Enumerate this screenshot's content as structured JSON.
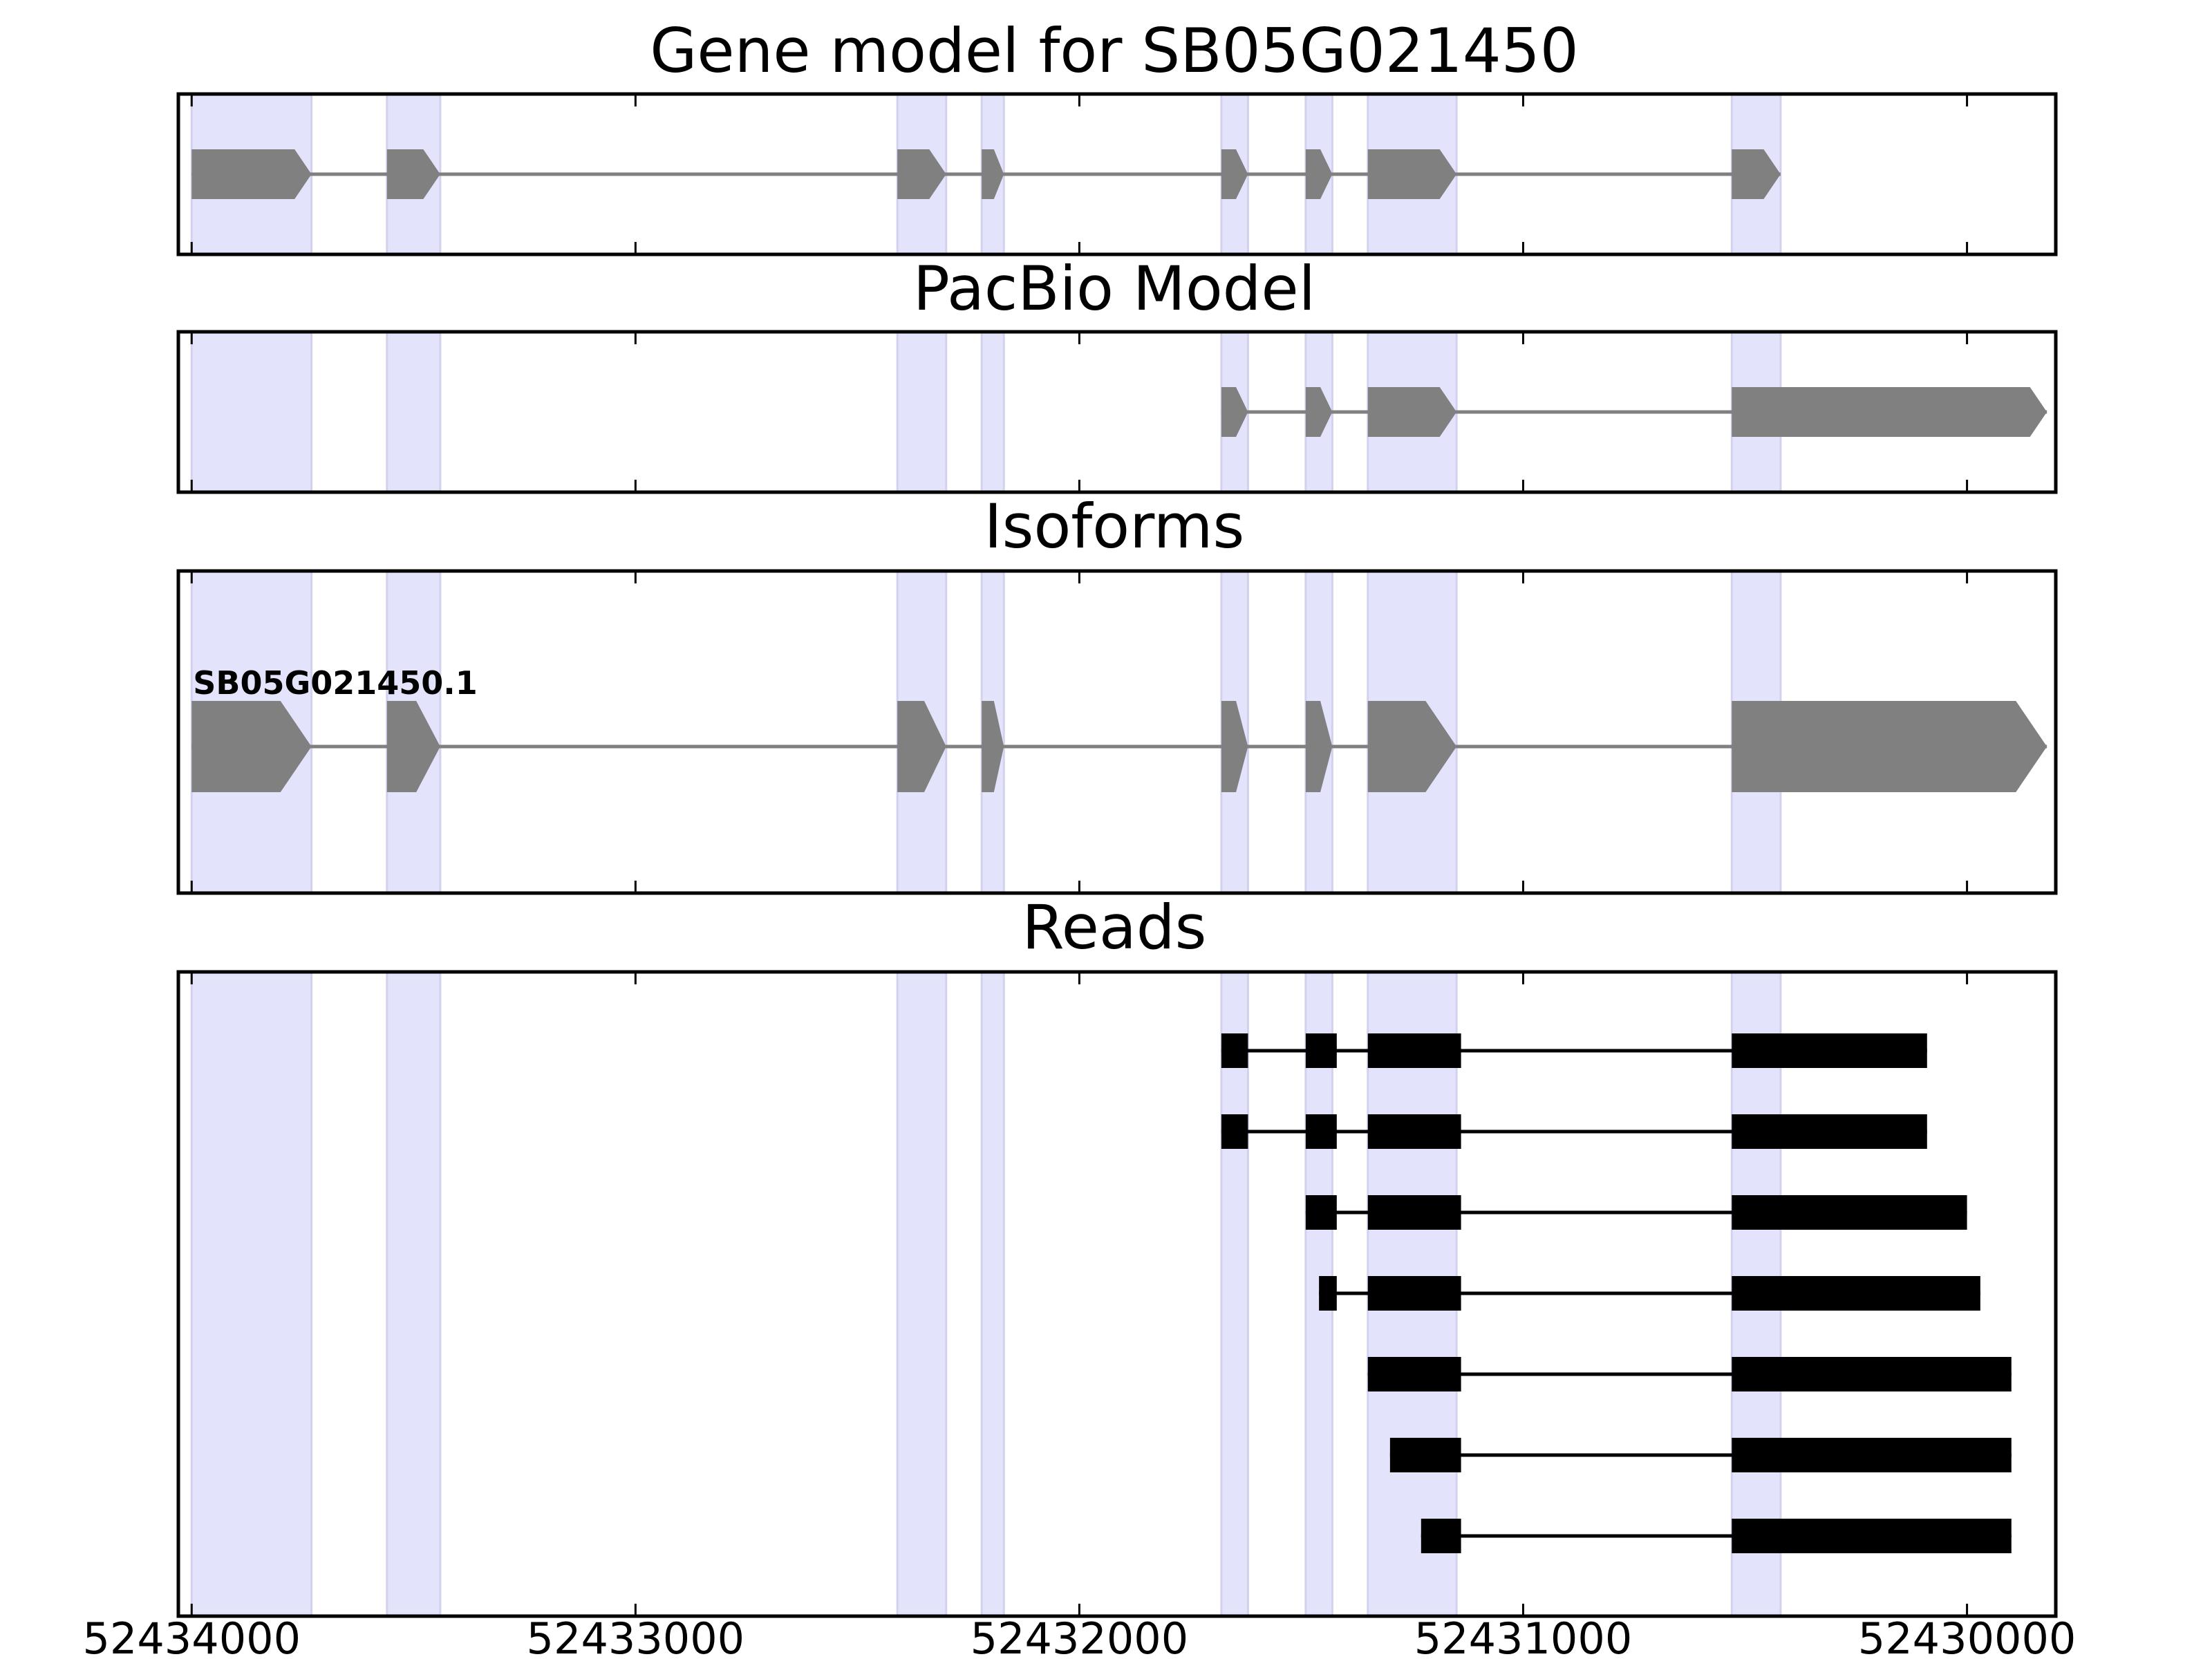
{
  "chart_data": {
    "type": "gene-model",
    "strand": "-",
    "x_axis": {
      "xlim": [
        52434030,
        52429800
      ],
      "ticks": [
        52434000,
        52433000,
        52432000,
        52431000,
        52430000
      ],
      "tick_labels": [
        "52434000",
        "52433000",
        "52432000",
        "52431000",
        "52430000"
      ]
    },
    "highlight_bands": [
      [
        52434000,
        52433730
      ],
      [
        52433560,
        52433440
      ],
      [
        52432410,
        52432300
      ],
      [
        52432220,
        52432170
      ],
      [
        52431680,
        52431620
      ],
      [
        52431490,
        52431430
      ],
      [
        52431350,
        52431150
      ],
      [
        52430530,
        52430420
      ]
    ],
    "panels": [
      {
        "key": "gene_model",
        "title": "Gene model for SB05G021450",
        "models": [
          {
            "exons": [
              [
                52434000,
                52433730
              ],
              [
                52433560,
                52433440
              ],
              [
                52432410,
                52432300
              ],
              [
                52432220,
                52432170
              ],
              [
                52431680,
                52431620
              ],
              [
                52431490,
                52431430
              ],
              [
                52431350,
                52431150
              ],
              [
                52430530,
                52430420
              ]
            ]
          }
        ]
      },
      {
        "key": "pacbio_model",
        "title": "PacBio Model",
        "models": [
          {
            "exons": [
              [
                52431680,
                52431620
              ],
              [
                52431490,
                52431430
              ],
              [
                52431350,
                52431150
              ],
              [
                52430530,
                52429820
              ]
            ]
          }
        ]
      },
      {
        "key": "isoforms",
        "title": "Isoforms",
        "models": [
          {
            "label": "SB05G021450.1",
            "exons": [
              [
                52434000,
                52433730
              ],
              [
                52433560,
                52433440
              ],
              [
                52432410,
                52432300
              ],
              [
                52432220,
                52432170
              ],
              [
                52431680,
                52431620
              ],
              [
                52431490,
                52431430
              ],
              [
                52431350,
                52431150
              ],
              [
                52430530,
                52429820
              ]
            ]
          }
        ]
      },
      {
        "key": "reads",
        "title": "Reads",
        "reads": [
          [
            [
              52431680,
              52431620
            ],
            [
              52431490,
              52431420
            ],
            [
              52431350,
              52431140
            ],
            [
              52430530,
              52430090
            ]
          ],
          [
            [
              52431680,
              52431620
            ],
            [
              52431490,
              52431420
            ],
            [
              52431350,
              52431140
            ],
            [
              52430530,
              52430090
            ]
          ],
          [
            [
              52431490,
              52431420
            ],
            [
              52431350,
              52431140
            ],
            [
              52430530,
              52430000
            ]
          ],
          [
            [
              52431460,
              52431420
            ],
            [
              52431350,
              52431140
            ],
            [
              52430530,
              52429970
            ]
          ],
          [
            [
              52431350,
              52431140
            ],
            [
              52430530,
              52429900
            ]
          ],
          [
            [
              52431300,
              52431140
            ],
            [
              52430530,
              52429900
            ]
          ],
          [
            [
              52431230,
              52431140
            ],
            [
              52430530,
              52429900
            ]
          ]
        ]
      }
    ]
  }
}
